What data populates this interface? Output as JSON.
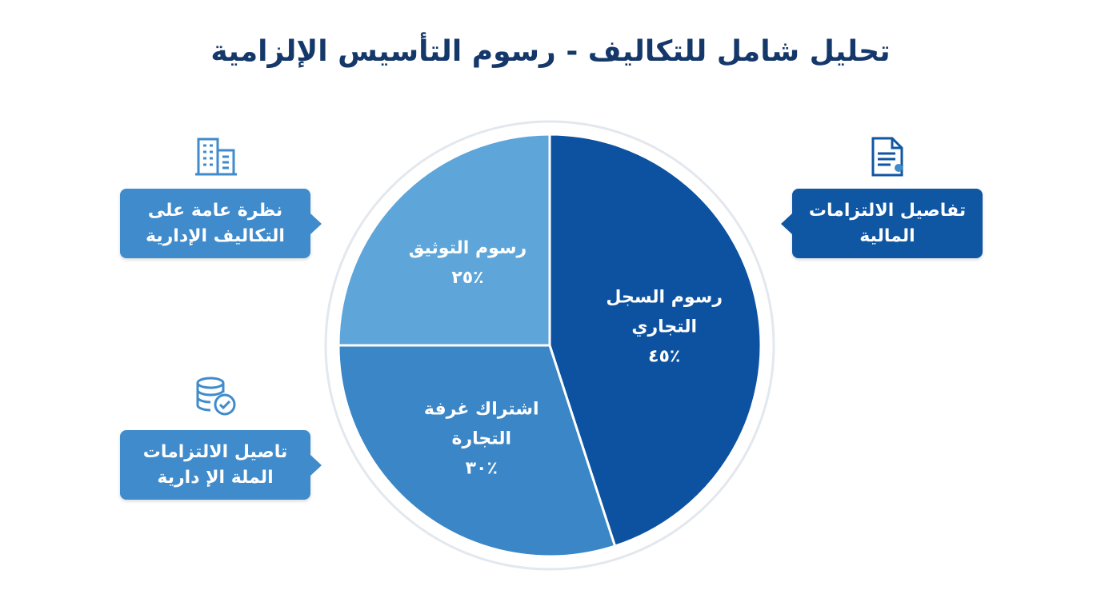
{
  "chart_data": {
    "type": "pie",
    "title": "تحليل شامل للتكاليف - رسوم التأسيس الإلزامية",
    "categories": [
      "رسوم السجل التجاري",
      "اشتراك غرفة التجارة",
      "رسوم التوثيق"
    ],
    "values": [
      45,
      30,
      25
    ],
    "value_labels": [
      "٪٤٥",
      "٪٣٠",
      "٪٢٥"
    ],
    "colors": [
      "#0d52a0",
      "#3a86c6",
      "#5ea6da"
    ],
    "annotations": [
      "نظرة عامة على التكاليف الإدارية",
      "تفاصيل الالتزامات المالية",
      "تاصيل الالتزامات الملة الإ دارية"
    ]
  }
}
